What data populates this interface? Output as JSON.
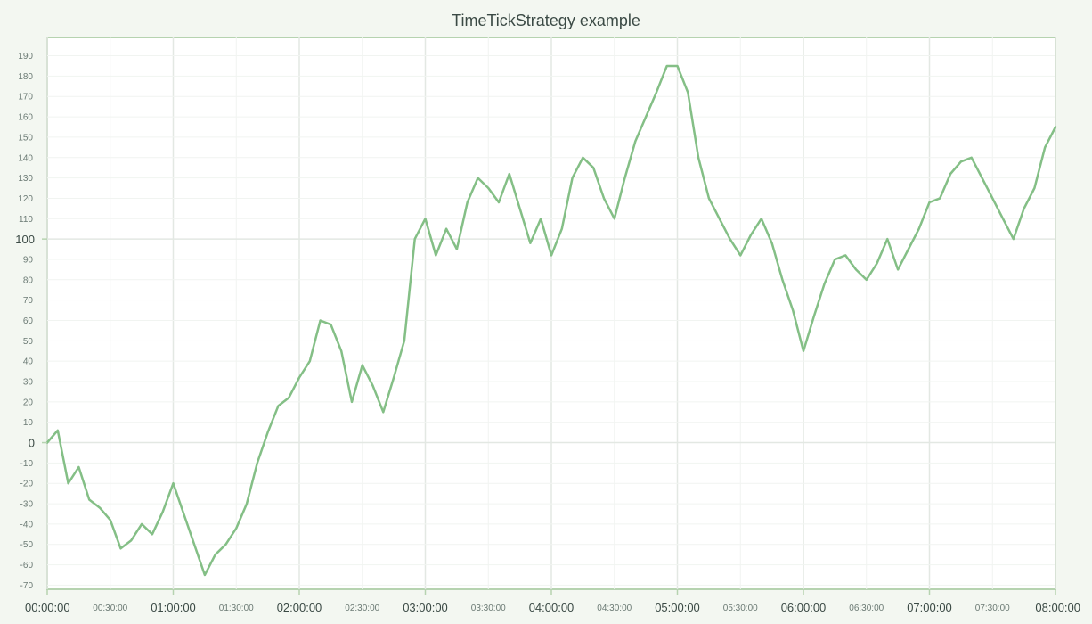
{
  "chart_data": {
    "type": "line",
    "title": "TimeTickStrategy example",
    "xlabel": "",
    "ylabel": "",
    "x_range_hours": [
      0,
      8
    ],
    "ylim": [
      -72,
      199
    ],
    "grid": true,
    "colors": {
      "background": "#f3f7f1",
      "plot_area": "#ffffff",
      "frame": "#b6d3b0",
      "line": "#84bf86",
      "grid_major": "#e3e8e3",
      "grid_minor": "#f1f4f1",
      "text": "#3b4a45"
    },
    "x_ticks": {
      "major": [
        "00:00:00",
        "01:00:00",
        "02:00:00",
        "03:00:00",
        "04:00:00",
        "05:00:00",
        "06:00:00",
        "07:00:00",
        "08:00:00"
      ],
      "minor": [
        "00:30:00",
        "01:30:00",
        "02:30:00",
        "03:30:00",
        "04:30:00",
        "05:30:00",
        "06:30:00",
        "07:30:00"
      ]
    },
    "y_ticks": {
      "major": [
        0,
        100
      ],
      "minor": [
        -70,
        -60,
        -50,
        -40,
        -30,
        -20,
        -10,
        10,
        20,
        30,
        40,
        50,
        60,
        70,
        80,
        90,
        110,
        120,
        130,
        140,
        150,
        160,
        170,
        180,
        190
      ]
    },
    "series": [
      {
        "x": [
          "00:00:00",
          "00:05:00",
          "00:10:00",
          "00:15:00",
          "00:20:00",
          "00:25:00",
          "00:30:00",
          "00:35:00",
          "00:40:00",
          "00:45:00",
          "00:50:00",
          "00:55:00",
          "01:00:00",
          "01:05:00",
          "01:10:00",
          "01:15:00",
          "01:20:00",
          "01:25:00",
          "01:30:00",
          "01:35:00",
          "01:40:00",
          "01:45:00",
          "01:50:00",
          "01:55:00",
          "02:00:00",
          "02:05:00",
          "02:10:00",
          "02:15:00",
          "02:20:00",
          "02:25:00",
          "02:30:00",
          "02:35:00",
          "02:40:00",
          "02:45:00",
          "02:50:00",
          "02:55:00",
          "03:00:00",
          "03:05:00",
          "03:10:00",
          "03:15:00",
          "03:20:00",
          "03:25:00",
          "03:30:00",
          "03:35:00",
          "03:40:00",
          "03:45:00",
          "03:50:00",
          "03:55:00",
          "04:00:00",
          "04:05:00",
          "04:10:00",
          "04:15:00",
          "04:20:00",
          "04:25:00",
          "04:30:00",
          "04:35:00",
          "04:40:00",
          "04:45:00",
          "04:50:00",
          "04:55:00",
          "05:00:00",
          "05:05:00",
          "05:10:00",
          "05:15:00",
          "05:20:00",
          "05:25:00",
          "05:30:00",
          "05:35:00",
          "05:40:00",
          "05:45:00",
          "05:50:00",
          "05:55:00",
          "06:00:00",
          "06:05:00",
          "06:10:00",
          "06:15:00",
          "06:20:00",
          "06:25:00",
          "06:30:00",
          "06:35:00",
          "06:40:00",
          "06:45:00",
          "06:50:00",
          "06:55:00",
          "07:00:00",
          "07:05:00",
          "07:10:00",
          "07:15:00",
          "07:20:00",
          "07:25:00",
          "07:30:00",
          "07:35:00",
          "07:40:00",
          "07:45:00",
          "07:50:00",
          "07:55:00",
          "08:00:00"
        ],
        "values": [
          0,
          6,
          -20,
          -12,
          -28,
          -32,
          -38,
          -52,
          -48,
          -40,
          -45,
          -34,
          -20,
          -35,
          -50,
          -65,
          -55,
          -50,
          -42,
          -30,
          -10,
          5,
          18,
          22,
          32,
          40,
          60,
          58,
          45,
          20,
          38,
          28,
          15,
          32,
          50,
          100,
          110,
          92,
          105,
          95,
          118,
          130,
          125,
          118,
          132,
          115,
          98,
          110,
          92,
          105,
          130,
          140,
          135,
          120,
          110,
          130,
          148,
          160,
          172,
          185,
          185,
          172,
          140,
          120,
          110,
          100,
          92,
          102,
          110,
          98,
          80,
          65,
          45,
          62,
          78,
          90,
          92,
          85,
          80,
          88,
          100,
          85,
          95,
          105,
          118,
          120,
          132,
          138,
          140,
          130,
          120,
          110,
          100,
          115,
          125,
          145,
          155
        ]
      }
    ]
  }
}
